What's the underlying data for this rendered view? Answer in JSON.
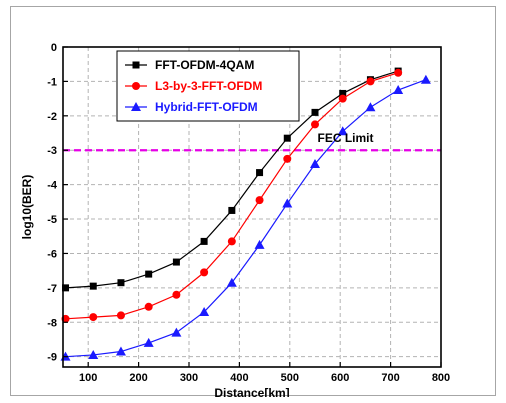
{
  "chart_data": {
    "type": "line",
    "xlabel": "Distance[km]",
    "ylabel": "log10(BER)",
    "xlim": [
      50,
      800
    ],
    "ylim": [
      -9.3,
      0
    ],
    "x_ticks": [
      100,
      200,
      300,
      400,
      500,
      600,
      700,
      800
    ],
    "y_ticks": [
      0,
      -1,
      -2,
      -3,
      -4,
      -5,
      -6,
      -7,
      -8,
      -9
    ],
    "grid": true,
    "grid_style": "dashed",
    "legend_position": "top-center",
    "series": [
      {
        "name": "FFT-OFDM-4QAM",
        "color": "#000000",
        "marker": "square",
        "x": [
          55,
          110,
          165,
          220,
          275,
          330,
          385,
          440,
          495,
          550,
          605,
          660,
          715
        ],
        "y": [
          -7.0,
          -6.95,
          -6.85,
          -6.6,
          -6.25,
          -5.65,
          -4.75,
          -3.65,
          -2.65,
          -1.9,
          -1.35,
          -0.95,
          -0.7
        ]
      },
      {
        "name": "L3-by-3-FFT-OFDM",
        "color": "#ff0000",
        "marker": "circle",
        "x": [
          55,
          110,
          165,
          220,
          275,
          330,
          385,
          440,
          495,
          550,
          605,
          660,
          715
        ],
        "y": [
          -7.9,
          -7.85,
          -7.8,
          -7.55,
          -7.2,
          -6.55,
          -5.65,
          -4.45,
          -3.25,
          -2.25,
          -1.5,
          -1.0,
          -0.75
        ]
      },
      {
        "name": "Hybrid-FFT-OFDM",
        "color": "#1a1aff",
        "marker": "triangle",
        "x": [
          55,
          110,
          165,
          220,
          275,
          330,
          385,
          440,
          495,
          550,
          605,
          660,
          715,
          770
        ],
        "y": [
          -9.0,
          -8.95,
          -8.85,
          -8.6,
          -8.3,
          -7.7,
          -6.85,
          -5.75,
          -4.55,
          -3.4,
          -2.45,
          -1.75,
          -1.25,
          -0.95
        ]
      }
    ],
    "reference_line": {
      "label": "FEC Limit",
      "y": -3,
      "color": "#e600e6"
    }
  }
}
